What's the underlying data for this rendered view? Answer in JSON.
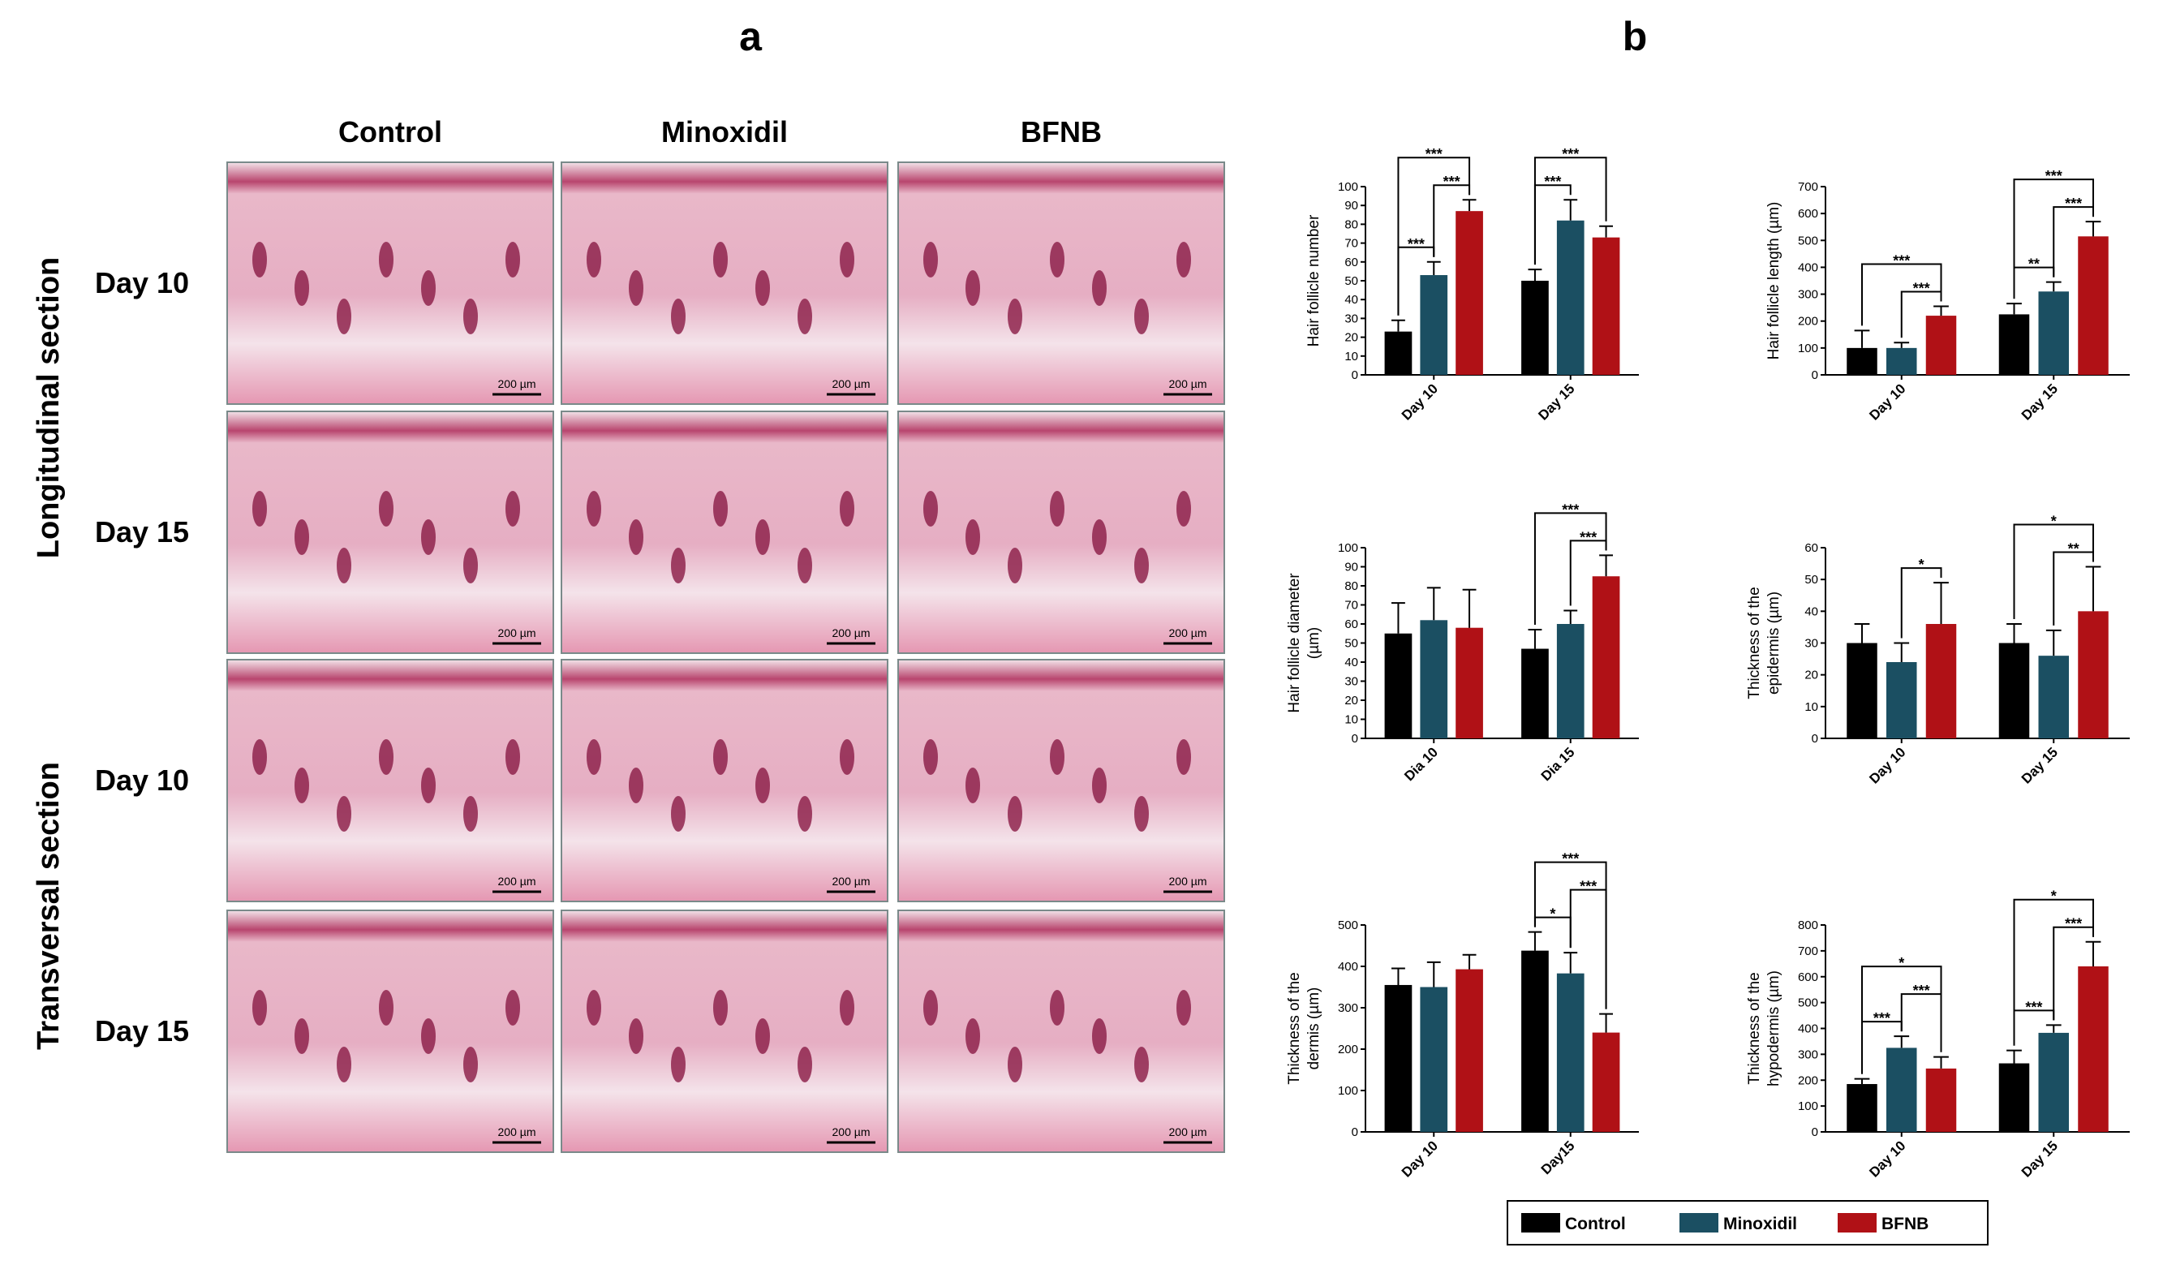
{
  "panel_a": {
    "label": "a",
    "columns": [
      "Control",
      "Minoxidil",
      "BFNB"
    ],
    "sections": [
      {
        "label": "Longitudinal section",
        "rows": [
          "Day 10",
          "Day 15"
        ]
      },
      {
        "label": "Transversal section",
        "rows": [
          "Day 10",
          "Day 15"
        ]
      }
    ],
    "scale_bar": "200 µm"
  },
  "panel_b_label": "b",
  "chart_data": [
    {
      "type": "bar",
      "ylabel": [
        "Hair follicle number"
      ],
      "categories": [
        "Day 10",
        "Day 15"
      ],
      "ylim": [
        0,
        100
      ],
      "yticks": [
        0,
        10,
        20,
        30,
        40,
        50,
        60,
        70,
        80,
        90,
        100
      ],
      "series": [
        {
          "name": "Control",
          "color": "#000000",
          "values": [
            23,
            50
          ],
          "errors": [
            6,
            6
          ]
        },
        {
          "name": "Minoxidil",
          "color": "#1b4f62",
          "values": [
            53,
            82
          ],
          "errors": [
            7,
            11
          ]
        },
        {
          "name": "BFNB",
          "color": "#b01116",
          "values": [
            87,
            73
          ],
          "errors": [
            6,
            6
          ]
        }
      ],
      "annotations": [
        {
          "text": "***",
          "category": 0,
          "from": 0,
          "to": 1
        },
        {
          "text": "***",
          "category": 0,
          "from": 1,
          "to": 2
        },
        {
          "text": "***",
          "category": 0,
          "from": 0,
          "to": 2
        },
        {
          "text": "***",
          "category": 1,
          "from": 0,
          "to": 1
        },
        {
          "text": "***",
          "category": 1,
          "from": 0,
          "to": 2
        }
      ]
    },
    {
      "type": "bar",
      "ylabel": [
        "Hair follicle length (µm)"
      ],
      "categories": [
        "Day 10",
        "Day 15"
      ],
      "ylim": [
        0,
        700
      ],
      "yticks": [
        0,
        100,
        200,
        300,
        400,
        500,
        600,
        700
      ],
      "series": [
        {
          "name": "Control",
          "color": "#000000",
          "values": [
            100,
            225
          ],
          "errors": [
            65,
            40
          ]
        },
        {
          "name": "Minoxidil",
          "color": "#1b4f62",
          "values": [
            100,
            310
          ],
          "errors": [
            20,
            35
          ]
        },
        {
          "name": "BFNB",
          "color": "#b01116",
          "values": [
            220,
            515
          ],
          "errors": [
            35,
            55
          ]
        }
      ],
      "annotations": [
        {
          "text": "***",
          "category": 0,
          "from": 1,
          "to": 2
        },
        {
          "text": "***",
          "category": 0,
          "from": 0,
          "to": 2
        },
        {
          "text": "**",
          "category": 1,
          "from": 0,
          "to": 1
        },
        {
          "text": "***",
          "category": 1,
          "from": 1,
          "to": 2
        },
        {
          "text": "***",
          "category": 1,
          "from": 0,
          "to": 2
        }
      ]
    },
    {
      "type": "bar",
      "ylabel": [
        "Hair follicle diameter",
        "(µm)"
      ],
      "categories": [
        "Dia 10",
        "Dia 15"
      ],
      "ylim": [
        0,
        100
      ],
      "yticks": [
        0,
        10,
        20,
        30,
        40,
        50,
        60,
        70,
        80,
        90,
        100
      ],
      "series": [
        {
          "name": "Control",
          "color": "#000000",
          "values": [
            55,
            47
          ],
          "errors": [
            16,
            10
          ]
        },
        {
          "name": "Minoxidil",
          "color": "#1b4f62",
          "values": [
            62,
            60
          ],
          "errors": [
            17,
            7
          ]
        },
        {
          "name": "BFNB",
          "color": "#b01116",
          "values": [
            58,
            85
          ],
          "errors": [
            20,
            11
          ]
        }
      ],
      "annotations": [
        {
          "text": "***",
          "category": 1,
          "from": 1,
          "to": 2
        },
        {
          "text": "***",
          "category": 1,
          "from": 0,
          "to": 2
        }
      ]
    },
    {
      "type": "bar",
      "ylabel": [
        "Thickness of the",
        "epidermis (µm)"
      ],
      "categories": [
        "Day 10",
        "Day 15"
      ],
      "ylim": [
        0,
        60
      ],
      "yticks": [
        0,
        10,
        20,
        30,
        40,
        50,
        60
      ],
      "series": [
        {
          "name": "Control",
          "color": "#000000",
          "values": [
            30,
            30
          ],
          "errors": [
            6,
            6
          ]
        },
        {
          "name": "Minoxidil",
          "color": "#1b4f62",
          "values": [
            24,
            26
          ],
          "errors": [
            6,
            8
          ]
        },
        {
          "name": "BFNB",
          "color": "#b01116",
          "values": [
            36,
            40
          ],
          "errors": [
            13,
            14
          ]
        }
      ],
      "annotations": [
        {
          "text": "*",
          "category": 0,
          "from": 1,
          "to": 2
        },
        {
          "text": "**",
          "category": 1,
          "from": 1,
          "to": 2
        },
        {
          "text": "*",
          "category": 1,
          "from": 0,
          "to": 2
        }
      ]
    },
    {
      "type": "bar",
      "ylabel": [
        "Thickness of the",
        "dermis (µm)"
      ],
      "categories": [
        "Day 10",
        "Day15"
      ],
      "ylim": [
        0,
        500
      ],
      "yticks": [
        0,
        100,
        200,
        300,
        400,
        500
      ],
      "series": [
        {
          "name": "Control",
          "color": "#000000",
          "values": [
            355,
            438
          ],
          "errors": [
            40,
            45
          ]
        },
        {
          "name": "Minoxidil",
          "color": "#1b4f62",
          "values": [
            350,
            383
          ],
          "errors": [
            60,
            50
          ]
        },
        {
          "name": "BFNB",
          "color": "#b01116",
          "values": [
            393,
            240
          ],
          "errors": [
            35,
            45
          ]
        }
      ],
      "annotations": [
        {
          "text": "*",
          "category": 1,
          "from": 0,
          "to": 1
        },
        {
          "text": "***",
          "category": 1,
          "from": 1,
          "to": 2
        },
        {
          "text": "***",
          "category": 1,
          "from": 0,
          "to": 2
        }
      ]
    },
    {
      "type": "bar",
      "ylabel": [
        "Thickness of the",
        "hypodermis (µm)"
      ],
      "categories": [
        "Day 10",
        "Day 15"
      ],
      "ylim": [
        0,
        800
      ],
      "yticks": [
        0,
        100,
        200,
        300,
        400,
        500,
        600,
        700,
        800
      ],
      "series": [
        {
          "name": "Control",
          "color": "#000000",
          "values": [
            185,
            265
          ],
          "errors": [
            20,
            50
          ]
        },
        {
          "name": "Minoxidil",
          "color": "#1b4f62",
          "values": [
            325,
            383
          ],
          "errors": [
            45,
            30
          ]
        },
        {
          "name": "BFNB",
          "color": "#b01116",
          "values": [
            245,
            640
          ],
          "errors": [
            45,
            95
          ]
        }
      ],
      "annotations": [
        {
          "text": "***",
          "category": 0,
          "from": 0,
          "to": 1
        },
        {
          "text": "***",
          "category": 0,
          "from": 1,
          "to": 2
        },
        {
          "text": "*",
          "category": 0,
          "from": 0,
          "to": 2
        },
        {
          "text": "***",
          "category": 1,
          "from": 0,
          "to": 1
        },
        {
          "text": "***",
          "category": 1,
          "from": 1,
          "to": 2
        },
        {
          "text": "*",
          "category": 1,
          "from": 0,
          "to": 2
        }
      ]
    }
  ]
}
